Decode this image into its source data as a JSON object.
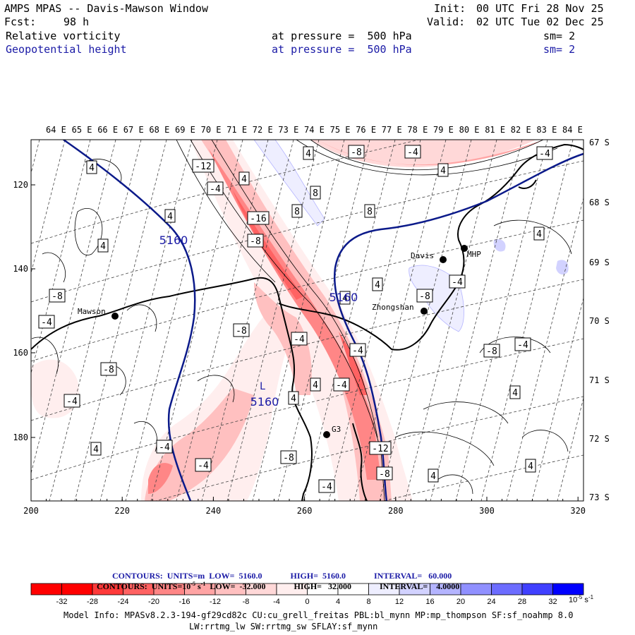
{
  "header": {
    "title": "AMPS MPAS -- Davis-Mawson Window",
    "init_label": "Init:",
    "init_value": "00 UTC Fri 28 Nov 25",
    "fcst_label": "Fcst:",
    "fcst_value": "98 h",
    "valid_label": "Valid:",
    "valid_value": "02 UTC Tue 02 Dec 25",
    "field1": {
      "name": "Relative vorticity",
      "level": "at pressure =  500 hPa",
      "smooth": "sm= 2"
    },
    "field2": {
      "name": "Geopotential height",
      "level": "at pressure =  500 hPa",
      "smooth": "sm= 2"
    }
  },
  "map": {
    "top_lon_labels": [
      "64 E",
      "65 E",
      "66 E",
      "67 E",
      "68 E",
      "69 E",
      "70 E",
      "71 E",
      "72 E",
      "73 E",
      "74 E",
      "75 E",
      "76 E",
      "77 E",
      "78 E",
      "79 E",
      "80 E",
      "81 E",
      "82 E",
      "83 E",
      "84 E"
    ],
    "right_lat_labels": [
      "67 S",
      "68 S",
      "69 S",
      "70 S",
      "71 S",
      "72 S",
      "73 S"
    ],
    "x_ticks": [
      "200",
      "220",
      "240",
      "260",
      "280",
      "300",
      "320"
    ],
    "y_ticks": [
      "120",
      "140",
      "160",
      "180"
    ],
    "stations": [
      {
        "name": "Mawson"
      },
      {
        "name": "Davis"
      },
      {
        "name": "MHP"
      },
      {
        "name": "Zhongshan"
      },
      {
        "name": "G3"
      }
    ],
    "height_labels": [
      "5160",
      "5160",
      "5160"
    ],
    "low_marker": "L",
    "vorticity_labels": [
      "4",
      "-8",
      "-4",
      "4",
      "-12",
      "-4",
      "4",
      "-4",
      "4",
      "8",
      "8",
      "8",
      "-16",
      "-8",
      "4",
      "4",
      "-8",
      "4",
      "4",
      "-4",
      "-4",
      "-8",
      "-4",
      "-4",
      "-8",
      "-4",
      "4",
      "-4",
      "4",
      "-4",
      "-4",
      "-8",
      "-4",
      "-8",
      "-4",
      "4",
      "-12",
      "-8",
      "-8",
      "4",
      "4",
      "4",
      "4"
    ],
    "colors": {
      "height_contour": "#0b1a8a",
      "vort_contour": "#000000",
      "coast": "#000000"
    }
  },
  "legend_text": {
    "line1_prefix": "CONTOURS:  UNITS=m  LOW=  5160.0",
    "line1_high": "HIGH=  5160.0",
    "line1_interval": "INTERVAL=   60.000",
    "line2_prefix": "CONTOURS:  UNITS=10",
    "line2_sup": "-5",
    "line2_unit": " s",
    "line2_sup2": "-1",
    "line2_low": "  LOW=  -32.000",
    "line2_high": "HIGH=   32.000",
    "line2_interval": "INTERVAL=    4.0000"
  },
  "colorbar": {
    "labels": [
      "-32",
      "-28",
      "-24",
      "-20",
      "-16",
      "-12",
      "-8",
      "-4",
      "0",
      "4",
      "8",
      "12",
      "16",
      "20",
      "24",
      "28",
      "32"
    ],
    "colors": [
      "#ff0000",
      "#ff3a3a",
      "#ff6262",
      "#ff8686",
      "#ffa4a4",
      "#ffc0c0",
      "#ffd8d8",
      "#ffeeee",
      "#ffffff",
      "#ffffff",
      "#eeeeff",
      "#d2d2ff",
      "#b4b4ff",
      "#9090ff",
      "#6c6cff",
      "#4040ff",
      "#0000ff"
    ],
    "unit_base": "10",
    "unit_sup": "-5",
    "unit_s": " s",
    "unit_sup2": "-1"
  },
  "footer": {
    "line1": "Model Info: MPASv8.2.3-194-gf29cd82c CU:cu_grell_freitas PBL:bl_mynn MP:mp_thompson SF:sf_noahmp 8.0",
    "line2": "LW:rrtmg_lw SW:rrtmg_sw SFLAY:sf_mynn"
  }
}
